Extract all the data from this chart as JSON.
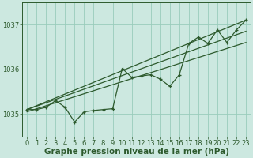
{
  "bg_color": "#cce8e0",
  "grid_color": "#99ccbb",
  "line_color": "#2d5a2d",
  "xlabel": "Graphe pression niveau de la mer (hPa)",
  "xlabel_fontsize": 7.5,
  "tick_fontsize": 6,
  "xlim": [
    -0.5,
    23.5
  ],
  "ylim": [
    1034.5,
    1037.5
  ],
  "yticks": [
    1035,
    1036,
    1037
  ],
  "xticks": [
    0,
    1,
    2,
    3,
    4,
    5,
    6,
    7,
    8,
    9,
    10,
    11,
    12,
    13,
    14,
    15,
    16,
    17,
    18,
    19,
    20,
    21,
    22,
    23
  ],
  "lines": [
    {
      "x": [
        0,
        23
      ],
      "y": [
        1035.1,
        1037.1
      ],
      "marker": false
    },
    {
      "x": [
        0,
        23
      ],
      "y": [
        1035.1,
        1036.85
      ],
      "marker": false
    },
    {
      "x": [
        0,
        23
      ],
      "y": [
        1035.05,
        1036.6
      ],
      "marker": false
    },
    {
      "x": [
        0,
        1,
        2,
        3,
        4,
        5,
        6,
        7,
        8,
        9,
        10,
        11,
        12,
        13,
        14,
        15,
        16,
        17,
        18,
        19,
        20,
        21,
        22,
        23
      ],
      "y": [
        1035.1,
        1035.1,
        1035.15,
        1035.3,
        1035.15,
        1034.82,
        1035.05,
        1035.08,
        1035.1,
        1035.12,
        1036.02,
        1035.82,
        1035.85,
        1035.88,
        1035.78,
        1035.62,
        1035.88,
        1036.58,
        1036.72,
        1036.58,
        1036.88,
        1036.6,
        1036.88,
        1037.1
      ],
      "marker": true
    }
  ]
}
